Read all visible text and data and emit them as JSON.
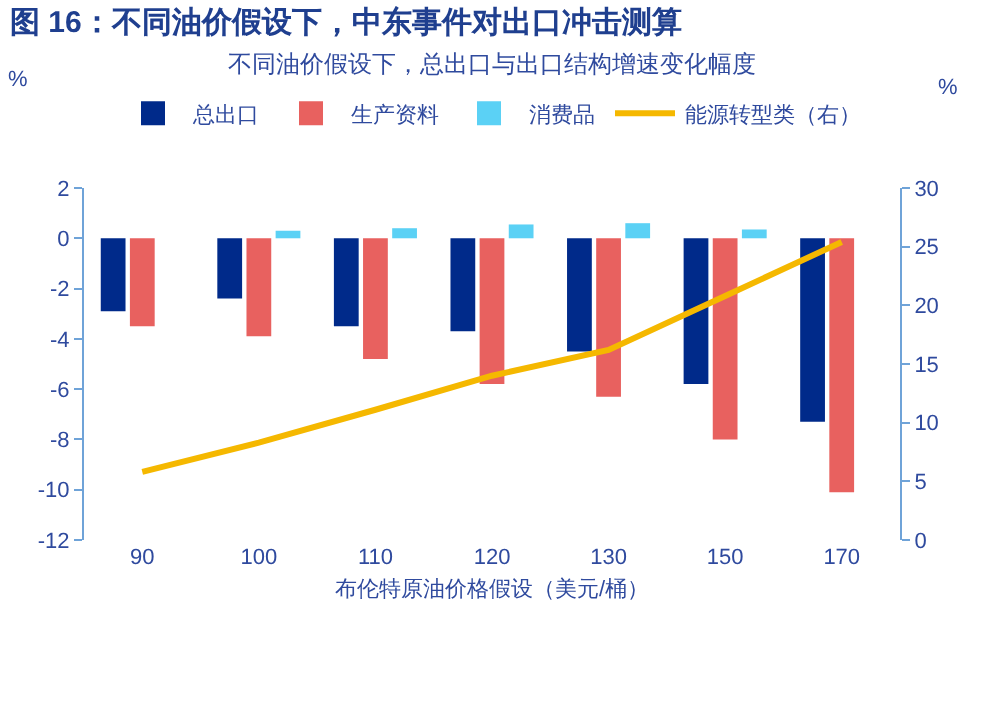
{
  "chart_data": {
    "type": "bar",
    "title": "图 16：不同油价假设下，中东事件对出口冲击测算",
    "subtitle": "不同油价假设下，总出口与出口结构增速变化幅度",
    "xlabel": "布伦特原油价格假设（美元/桶）",
    "ylabel": "%",
    "y2label": "%",
    "categories": [
      "90",
      "100",
      "110",
      "120",
      "130",
      "150",
      "170"
    ],
    "series": [
      {
        "name": "总出口",
        "color": "#002a8a",
        "values": [
          -2.9,
          -2.4,
          -3.5,
          -3.7,
          -4.5,
          -5.8,
          -7.3
        ]
      },
      {
        "name": "生产资料",
        "color": "#e8615f",
        "values": [
          -3.5,
          -3.9,
          -4.8,
          -5.8,
          -6.3,
          -8.0,
          -10.1
        ]
      },
      {
        "name": "消费品",
        "color": "#5bd1f5",
        "values": [
          0,
          0.3,
          0.4,
          0.55,
          0.6,
          0.35,
          0
        ]
      },
      {
        "name": "能源转型类（右）",
        "type": "line",
        "axis": "y2",
        "color": "#f5b800",
        "values": [
          5.8,
          8.3,
          11.1,
          14.0,
          16.2,
          20.8,
          25.4
        ]
      }
    ],
    "ylim": [
      -12,
      2
    ],
    "yticks": [
      -12,
      -10,
      -8,
      -6,
      -4,
      -2,
      0,
      2
    ],
    "y2lim": [
      0,
      30
    ],
    "y2ticks": [
      0,
      5,
      10,
      15,
      20,
      25,
      30
    ],
    "grid": false,
    "legend": "top",
    "marker": "none",
    "line_style": "solid"
  }
}
